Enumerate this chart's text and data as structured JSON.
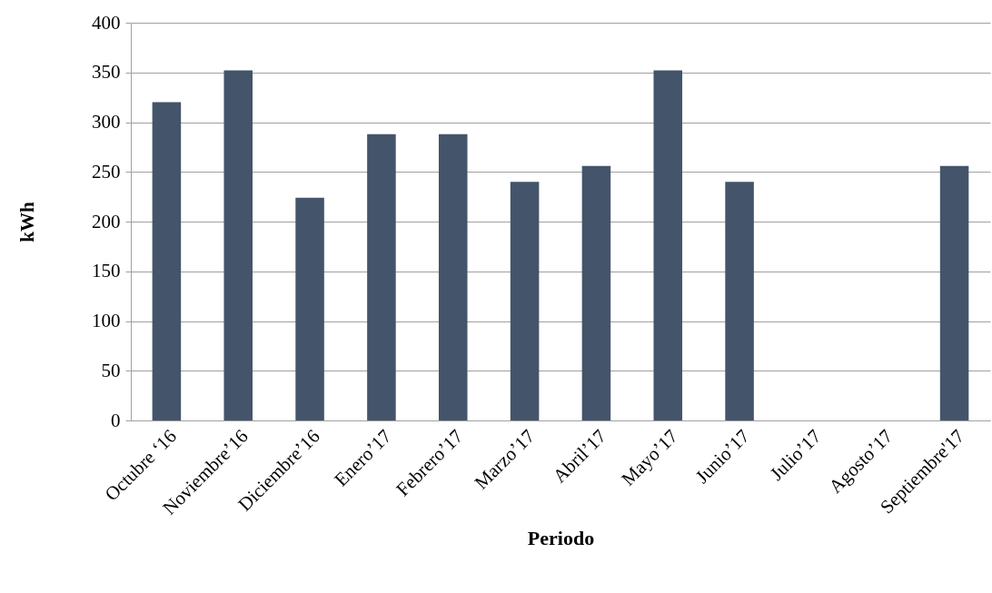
{
  "chart_data": {
    "type": "bar",
    "xlabel": "Periodo",
    "ylabel": "kWh",
    "categories": [
      "Octubre ‘16",
      "Noviembre’16",
      "Diciembre’16",
      "Enero’17",
      "Febrero’17",
      "Marzo’17",
      "Abril’17",
      "Mayo’17",
      "Junio’17",
      "Julio’17",
      "Agosto’17",
      "Septiembre'17"
    ],
    "values": [
      320,
      352,
      224,
      288,
      288,
      240,
      256,
      352,
      240,
      null,
      null,
      256
    ],
    "color": "#44546a",
    "ylim": [
      0,
      400
    ],
    "yticks": [
      0,
      50,
      100,
      150,
      200,
      250,
      300,
      350,
      400
    ],
    "grid": "y"
  }
}
